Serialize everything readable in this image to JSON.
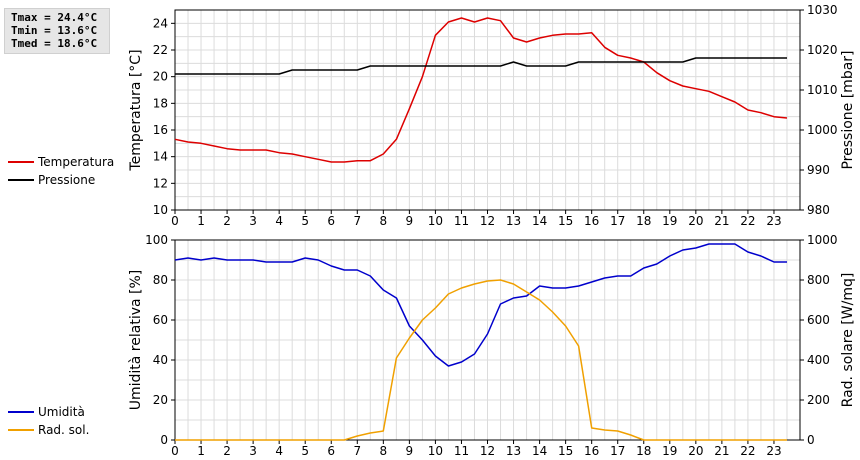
{
  "stats": {
    "tmax": "Tmax = 24.4°C",
    "tmin": "Tmin = 13.6°C",
    "tmed": "Tmed = 18.6°C"
  },
  "legend_top": [
    {
      "label": "Temperatura",
      "color": "#dd0000"
    },
    {
      "label": "Pressione",
      "color": "#000000"
    }
  ],
  "legend_bottom": [
    {
      "label": "Umidità",
      "color": "#0000cc"
    },
    {
      "label": "Rad. sol.",
      "color": "#f0a000"
    }
  ],
  "chart_data": [
    {
      "type": "line",
      "ylabel": "Temperatura [°C]",
      "y2label": "Pressione [mbar]",
      "xlim": [
        0,
        24
      ],
      "xticks": [
        0,
        1,
        2,
        3,
        4,
        5,
        6,
        7,
        8,
        9,
        10,
        11,
        12,
        13,
        14,
        15,
        16,
        17,
        18,
        19,
        20,
        21,
        22,
        23
      ],
      "ylim": [
        10,
        25
      ],
      "yticks": [
        10,
        12,
        14,
        16,
        18,
        20,
        22,
        24
      ],
      "y2lim": [
        980,
        1030
      ],
      "y2ticks": [
        980,
        990,
        1000,
        1010,
        1020,
        1030
      ],
      "grid": true,
      "series": [
        {
          "name": "Temperatura",
          "axis": "left",
          "color": "#dd0000",
          "x": [
            0,
            0.5,
            1,
            1.5,
            2,
            2.5,
            3,
            3.5,
            4,
            4.5,
            5,
            5.5,
            6,
            6.5,
            7,
            7.5,
            8,
            8.5,
            9,
            9.5,
            10,
            10.5,
            11,
            11.5,
            12,
            12.5,
            13,
            13.5,
            14,
            14.5,
            15,
            15.5,
            16,
            16.5,
            17,
            17.5,
            18,
            18.5,
            19,
            19.5,
            20,
            20.5,
            21,
            21.5,
            22,
            22.5,
            23,
            23.5
          ],
          "y": [
            15.3,
            15.1,
            15.0,
            14.8,
            14.6,
            14.5,
            14.5,
            14.5,
            14.3,
            14.2,
            14.0,
            13.8,
            13.6,
            13.6,
            13.7,
            13.7,
            14.2,
            15.3,
            17.6,
            20.0,
            23.1,
            24.1,
            24.4,
            24.1,
            24.4,
            24.2,
            22.9,
            22.6,
            22.9,
            23.1,
            23.2,
            23.2,
            23.3,
            22.2,
            21.6,
            21.4,
            21.1,
            20.3,
            19.7,
            19.3,
            19.1,
            18.9,
            18.5,
            18.1,
            17.5,
            17.3,
            17.0,
            16.9
          ]
        },
        {
          "name": "Pressione",
          "axis": "right",
          "color": "#000000",
          "x": [
            0,
            0.5,
            1,
            1.5,
            2,
            2.5,
            3,
            3.5,
            4,
            4.5,
            5,
            5.5,
            6,
            6.5,
            7,
            7.5,
            8,
            8.5,
            9,
            9.5,
            10,
            10.5,
            11,
            11.5,
            12,
            12.5,
            13,
            13.5,
            14,
            14.5,
            15,
            15.5,
            16,
            16.5,
            17,
            17.5,
            18,
            18.5,
            19,
            19.5,
            20,
            20.5,
            21,
            21.5,
            22,
            22.5,
            23,
            23.5
          ],
          "y": [
            1014,
            1014,
            1014,
            1014,
            1014,
            1014,
            1014,
            1014,
            1014,
            1015,
            1015,
            1015,
            1015,
            1015,
            1015,
            1016,
            1016,
            1016,
            1016,
            1016,
            1016,
            1016,
            1016,
            1016,
            1016,
            1016,
            1017,
            1016,
            1016,
            1016,
            1016,
            1017,
            1017,
            1017,
            1017,
            1017,
            1017,
            1017,
            1017,
            1017,
            1018,
            1018,
            1018,
            1018,
            1018,
            1018,
            1018,
            1018
          ]
        }
      ]
    },
    {
      "type": "line",
      "ylabel": "Umidità relativa [%]",
      "y2label": "Rad. solare [W/mq]",
      "xlim": [
        0,
        24
      ],
      "xticks": [
        0,
        1,
        2,
        3,
        4,
        5,
        6,
        7,
        8,
        9,
        10,
        11,
        12,
        13,
        14,
        15,
        16,
        17,
        18,
        19,
        20,
        21,
        22,
        23
      ],
      "ylim": [
        0,
        100
      ],
      "yticks": [
        0,
        20,
        40,
        60,
        80,
        100
      ],
      "y2lim": [
        0,
        1000
      ],
      "y2ticks": [
        0,
        200,
        400,
        600,
        800,
        1000
      ],
      "grid": true,
      "series": [
        {
          "name": "Umidità",
          "axis": "left",
          "color": "#0000cc",
          "x": [
            0,
            0.5,
            1,
            1.5,
            2,
            2.5,
            3,
            3.5,
            4,
            4.5,
            5,
            5.5,
            6,
            6.5,
            7,
            7.5,
            8,
            8.5,
            9,
            9.5,
            10,
            10.5,
            11,
            11.5,
            12,
            12.5,
            13,
            13.5,
            14,
            14.5,
            15,
            15.5,
            16,
            16.5,
            17,
            17.5,
            18,
            18.5,
            19,
            19.5,
            20,
            20.5,
            21,
            21.5,
            22,
            22.5,
            23,
            23.5
          ],
          "y": [
            90,
            91,
            90,
            91,
            90,
            90,
            90,
            89,
            89,
            89,
            91,
            90,
            87,
            85,
            85,
            82,
            75,
            71,
            57,
            50,
            42,
            37,
            39,
            43,
            53,
            68,
            71,
            72,
            77,
            76,
            76,
            77,
            79,
            81,
            82,
            82,
            86,
            88,
            92,
            95,
            96,
            98,
            98,
            98,
            94,
            92,
            89,
            89
          ]
        },
        {
          "name": "Rad. sol.",
          "axis": "right",
          "color": "#f0a000",
          "x": [
            0,
            0.5,
            1,
            1.5,
            2,
            2.5,
            3,
            3.5,
            4,
            4.5,
            5,
            5.5,
            6,
            6.5,
            7,
            7.5,
            8,
            8.5,
            9,
            9.5,
            10,
            10.5,
            11,
            11.5,
            12,
            12.5,
            13,
            13.5,
            14,
            14.5,
            15,
            15.5,
            16,
            16.5,
            17,
            17.5,
            18,
            18.5,
            19,
            19.5,
            20,
            20.5,
            21,
            21.5,
            22,
            22.5,
            23,
            23.5
          ],
          "y": [
            0,
            0,
            0,
            0,
            0,
            0,
            0,
            0,
            0,
            0,
            0,
            0,
            0,
            0,
            20,
            35,
            45,
            410,
            510,
            600,
            660,
            730,
            760,
            780,
            795,
            800,
            780,
            740,
            700,
            640,
            570,
            470,
            60,
            50,
            45,
            25,
            0,
            0,
            0,
            0,
            0,
            0,
            0,
            0,
            0,
            0,
            0,
            0
          ]
        }
      ]
    }
  ]
}
